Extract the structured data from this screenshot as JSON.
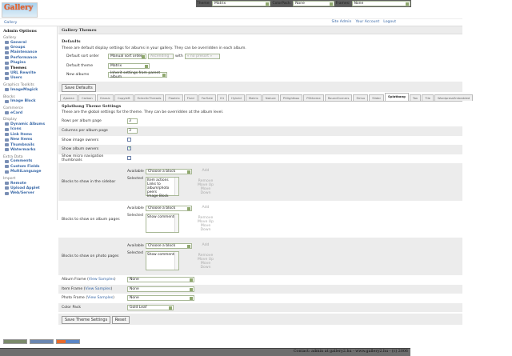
{
  "topbar": {
    "theme_label": "Theme:",
    "theme_value": "Matrix",
    "colorpack_label": "ColorPack:",
    "colorpack_value": "None",
    "frames_label": "Frames:",
    "frames_value": "None"
  },
  "logo": {
    "text": "Gallery"
  },
  "breadcrumb": "Gallery",
  "toplinks": [
    "Site Admin",
    "Your Account",
    "Logout"
  ],
  "sidebar": {
    "title": "Admin Options",
    "groups": [
      {
        "label": "Gallery",
        "items": [
          "General",
          "Groups",
          "Maintenance",
          "Performance",
          "Plugins",
          "Themes",
          "URL Rewrite",
          "Users"
        ]
      },
      {
        "label": "Graphics Toolkits",
        "items": [
          "ImageMagick"
        ]
      },
      {
        "label": "Blocks",
        "items": [
          "Image Block"
        ]
      },
      {
        "label": "Commerce",
        "items": [
          "eCard"
        ]
      },
      {
        "label": "Display",
        "items": [
          "Dynamic Albums",
          "Icons",
          "Link Items",
          "New Items",
          "Thumbnails",
          "Watermarks"
        ]
      },
      {
        "label": "Extra Data",
        "items": [
          "Comments",
          "Custom Fields",
          "MultiLanguage"
        ]
      },
      {
        "label": "Import",
        "items": [
          "Remote",
          "Upload Applet",
          "Web/Server"
        ]
      }
    ],
    "current": "Themes"
  },
  "main": {
    "title": "Gallery Themes",
    "defaults": {
      "heading": "Defaults",
      "description": "These are default display settings for albums in your gallery. They can be overridden in each album.",
      "sort_label": "Default sort order",
      "sort_value": "Manual sort order",
      "sort_dir": "Ascending",
      "with_label": "with",
      "with_value": "« no presort »",
      "theme_label": "Default theme",
      "theme_value": "Matrix",
      "new_label": "New albums",
      "new_value": "Inherit settings from parent album",
      "save": "Save Defaults"
    },
    "tabs": [
      "Ajaxian",
      "Carbon",
      "Classic",
      "Copyleft",
      "EclecticThreads",
      "Floatrix",
      "Fluid",
      "ForSale",
      "G1",
      "Hybrid",
      "Matrix",
      "Nature",
      "PGlightbox",
      "PGtheme",
      "RoundCorners",
      "Siriux",
      "Slider",
      "Splatbang",
      "Tan",
      "Tile",
      "WordpressEmbedded"
    ],
    "active_tab": "Splatbang",
    "theme": {
      "heading": "Splatbang Theme Settings",
      "description": "These are the global settings for the theme. They can be overridden at the album level.",
      "rows_label": "Rows per album page",
      "rows_value": "3",
      "cols_label": "Columns per album page",
      "cols_value": "3",
      "img_owners_label": "Show image owners",
      "img_owners": false,
      "album_owners_label": "Show album owners",
      "album_owners": true,
      "micro_label": "Show micro navigation thumbnails",
      "micro": false,
      "available": "Available",
      "selected": "Selected",
      "choose": "Choose a block",
      "add": "Add",
      "remove": "Remove",
      "up": "Move Up",
      "down": "Move Down",
      "sidebar_label": "Blocks to show in the sidebar",
      "sidebar_blocks": [
        "Item actions",
        "Links to album/photo peers",
        "Image Block"
      ],
      "album_label": "Blocks to show on album pages",
      "album_blocks": [
        "Show comments"
      ],
      "photo_label": "Blocks to show on photo pages",
      "photo_blocks": [
        "Show comments"
      ],
      "view_samples": "View Samples",
      "album_frame_label": "Album Frame",
      "album_frame": "None",
      "item_frame_label": "Item Frame",
      "item_frame": "None",
      "photo_frame_label": "Photo Frame",
      "photo_frame": "None",
      "colorpack_label": "Color Pack",
      "colorpack": "Gold Leaf",
      "save": "Save Theme Settings",
      "reset": "Reset"
    }
  },
  "footer": "Contact: admin at gallery2.hu - www.gallery2.hu - (c) 2006",
  "colors": {
    "link": "#3b6aa8",
    "panel": "#ececec",
    "footer": "#6e6e6e"
  }
}
